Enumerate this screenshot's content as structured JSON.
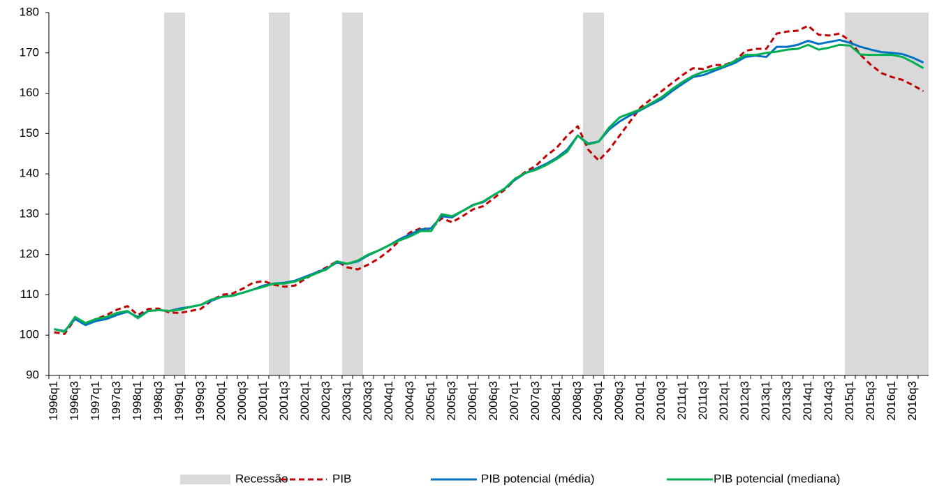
{
  "chart_data": {
    "type": "line",
    "categories": [
      "1996q1",
      null,
      "1996q3",
      null,
      "1997q1",
      null,
      "1997q3",
      null,
      "1998q1",
      null,
      "1998q3",
      null,
      "1999q1",
      null,
      "1999q3",
      null,
      "2000q1",
      null,
      "2000q3",
      null,
      "2001q1",
      null,
      "2001q3",
      null,
      "2002q1",
      null,
      "2002q3",
      null,
      "2003q1",
      null,
      "2003q3",
      null,
      "2004q1",
      null,
      "2004q3",
      null,
      "2005q1",
      null,
      "2005q3",
      null,
      "2006q1",
      null,
      "2006q3",
      null,
      "2007q1",
      null,
      "2007q3",
      null,
      "2008q1",
      null,
      "2008q3",
      null,
      "2009q1",
      null,
      "2009q3",
      null,
      "2010q1",
      null,
      "2010q3",
      null,
      "2011q1",
      null,
      "2011q3",
      null,
      "2012q1",
      null,
      "2012q3",
      null,
      "2013q1",
      null,
      "2013q3",
      null,
      "2014q1",
      null,
      "2014q3",
      null,
      "2015q1",
      null,
      "2015q3",
      null,
      "2016q1",
      null,
      "2016q3",
      null
    ],
    "ylim": [
      90,
      180
    ],
    "yticks": [
      90,
      100,
      110,
      120,
      130,
      140,
      150,
      160,
      170,
      180
    ],
    "grid": false,
    "series": [
      {
        "name": "Recessão",
        "type": "bar",
        "color": "#d9d9d9",
        "values": [
          null,
          null,
          null,
          null,
          null,
          null,
          null,
          null,
          null,
          null,
          null,
          180,
          180,
          null,
          null,
          null,
          null,
          null,
          null,
          null,
          null,
          180,
          180,
          null,
          null,
          null,
          null,
          null,
          180,
          180,
          null,
          null,
          null,
          null,
          null,
          null,
          null,
          null,
          null,
          null,
          null,
          null,
          null,
          null,
          null,
          null,
          null,
          null,
          null,
          null,
          null,
          180,
          180,
          null,
          null,
          null,
          null,
          null,
          null,
          null,
          null,
          null,
          null,
          null,
          null,
          null,
          null,
          null,
          null,
          null,
          null,
          null,
          null,
          null,
          null,
          null,
          180,
          180,
          180,
          180,
          180,
          180,
          180,
          180
        ]
      },
      {
        "name": "PIB",
        "type": "line",
        "color": "#c00000",
        "dashed": true,
        "values": [
          100.7,
          100.3,
          104,
          103,
          104,
          105,
          106.3,
          107.2,
          105,
          106.5,
          106.6,
          105.6,
          105.5,
          106,
          106.5,
          108.5,
          110,
          110.3,
          111.5,
          113,
          113.4,
          112.5,
          112,
          112.3,
          114,
          115.5,
          116.8,
          118.3,
          116.8,
          116.3,
          117.5,
          119,
          121,
          123.5,
          125.5,
          126.5,
          126.3,
          129,
          128,
          129.5,
          131.2,
          132,
          134,
          136,
          138.5,
          140.5,
          142,
          144.5,
          146.5,
          149.5,
          151.8,
          146,
          143.3,
          146,
          149.5,
          153,
          156.5,
          158.5,
          160.5,
          162.5,
          164.5,
          166.2,
          166,
          167,
          167,
          168,
          170.5,
          171,
          171,
          174.8,
          175.3,
          175.5,
          176.7,
          174.5,
          174.3,
          174.8,
          173,
          169.5,
          167,
          165,
          164,
          163.3,
          162,
          160.5
        ]
      },
      {
        "name": "PIB potencial (média)",
        "type": "line",
        "color": "#0070c0",
        "dashed": false,
        "values": [
          101.5,
          101,
          104,
          102.5,
          103.5,
          104,
          105,
          105.8,
          104.5,
          106,
          106.2,
          106,
          106.6,
          107,
          107.5,
          108.5,
          109.5,
          109.8,
          110.5,
          111.3,
          112.3,
          112.8,
          113,
          113.5,
          114.5,
          115.5,
          116.5,
          118,
          117.7,
          118.3,
          119.8,
          121,
          122.3,
          123.8,
          125,
          126.2,
          126.5,
          129.5,
          129.2,
          130.8,
          132.3,
          133,
          134.8,
          136.3,
          138.5,
          140.2,
          141.3,
          142.5,
          144,
          146,
          149.5,
          147.5,
          148,
          151,
          153,
          154.5,
          155.8,
          157.2,
          158.5,
          160.5,
          162.3,
          164,
          164.5,
          165.5,
          166.5,
          167.5,
          169,
          169.3,
          169,
          171.5,
          171.5,
          172,
          173,
          172.2,
          172.7,
          173.2,
          172.5,
          171.5,
          170.8,
          170.2,
          170,
          169.7,
          168.8,
          167.6
        ]
      },
      {
        "name": "PIB potencial (mediana)",
        "type": "line",
        "color": "#00b050",
        "dashed": false,
        "values": [
          101.5,
          100.8,
          104.5,
          103,
          104,
          104.5,
          105.5,
          106,
          104.2,
          106,
          106.2,
          106,
          106.3,
          107,
          107.5,
          108.8,
          109.5,
          109.7,
          110.5,
          111.3,
          112,
          112.8,
          112.8,
          113.3,
          114.2,
          115.3,
          116.3,
          118.3,
          117.7,
          118.5,
          120,
          121,
          122.3,
          123.5,
          124.5,
          125.8,
          125.8,
          130,
          129.5,
          130.8,
          132.2,
          133.2,
          134.8,
          136.3,
          138.8,
          140.2,
          141,
          142.2,
          143.7,
          145.5,
          149.5,
          147.3,
          148,
          151.5,
          154,
          155,
          156,
          157.5,
          159,
          161,
          162.8,
          164.3,
          165.3,
          166,
          166.8,
          168,
          169.5,
          169.5,
          170,
          170.3,
          170.8,
          171,
          172,
          170.8,
          171.3,
          172,
          171.8,
          169.6,
          169.5,
          169.5,
          169.5,
          169,
          167.7,
          166.2
        ]
      }
    ]
  }
}
